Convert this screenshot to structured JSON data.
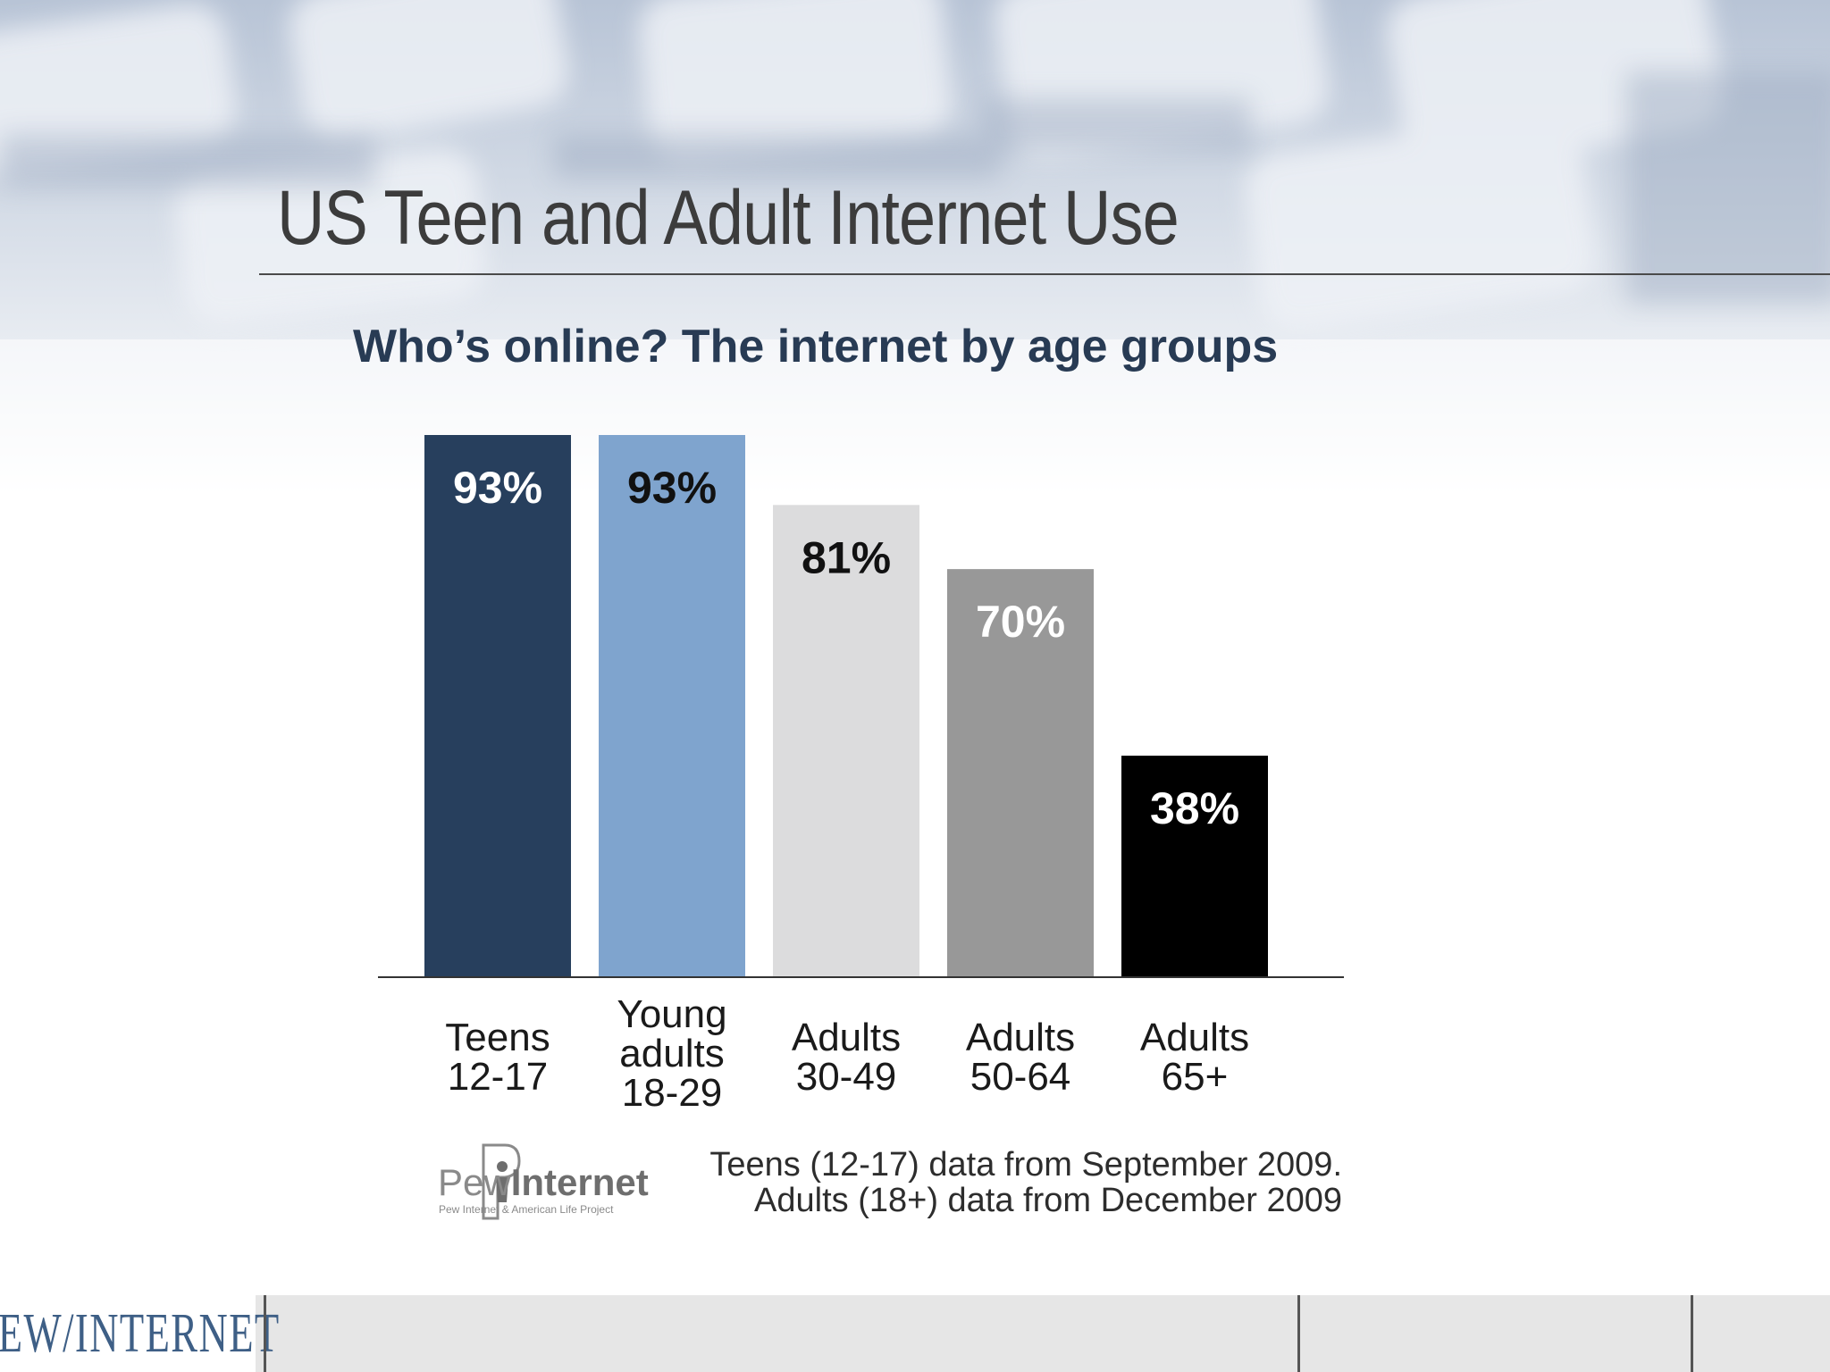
{
  "slide": {
    "title": "US Teen and Adult Internet Use"
  },
  "chart_data": {
    "type": "bar",
    "title": "Who’s online? The internet by age groups",
    "categories": [
      [
        "Teens",
        "12-17"
      ],
      [
        "Young",
        "adults",
        "18-29"
      ],
      [
        "Adults",
        "30-49"
      ],
      [
        "Adults",
        "50-64"
      ],
      [
        "Adults",
        "65+"
      ]
    ],
    "values": [
      93,
      93,
      81,
      70,
      38
    ],
    "value_labels": [
      "93%",
      "93%",
      "81%",
      "70%",
      "38%"
    ],
    "colors": [
      "#273f5d",
      "#7fa4ce",
      "#dcdcdd",
      "#989898",
      "#000000"
    ],
    "label_colors": [
      "#ffffff",
      "#111111",
      "#111111",
      "#ffffff",
      "#ffffff"
    ],
    "ylim": [
      0,
      93
    ],
    "grid": false,
    "legend": "none"
  },
  "source": {
    "logo_word_light": "Pew",
    "logo_word_bold": "Internet",
    "logo_subtitle": "Pew Internet & American Life Project",
    "note_line1": "Teens (12-17) data from September 2009.",
    "note_line2": "Adults (18+) data from December 2009"
  },
  "footer": {
    "brand": "PEW/INTERNET",
    "brand_color": "#3e5f86"
  }
}
